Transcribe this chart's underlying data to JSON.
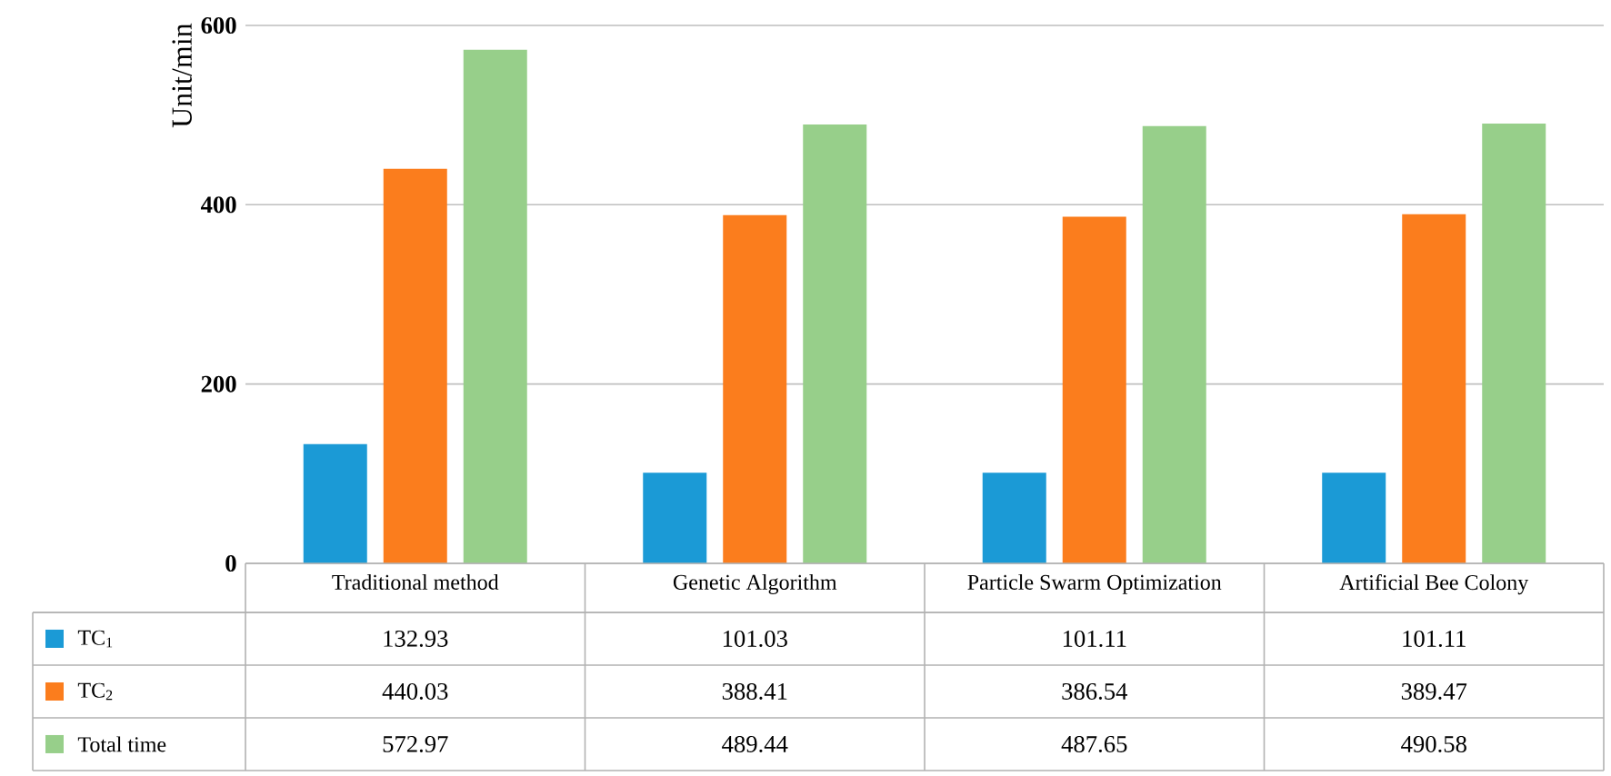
{
  "chart_data": {
    "type": "bar",
    "ylabel": "Unit/min",
    "categories": [
      "Traditional method",
      "Genetic Algorithm",
      "Particle Swarm Optimization",
      "Artificial Bee Colony"
    ],
    "series": [
      {
        "name": "TC$_{1}$",
        "color": "#1b9ad6",
        "values": [
          132.93,
          101.03,
          101.11,
          101.11
        ]
      },
      {
        "name": "TC$_{2}$",
        "color": "#fb7d1d",
        "values": [
          440.03,
          388.41,
          386.54,
          389.47
        ]
      },
      {
        "name": "Total time",
        "color": "#97cf8a",
        "values": [
          572.97,
          489.44,
          487.65,
          490.58
        ]
      }
    ],
    "ylim": [
      0,
      600
    ],
    "yticks": [
      0,
      200,
      400,
      600
    ],
    "grid": "y",
    "legend": "bottom",
    "data_labels": true
  }
}
